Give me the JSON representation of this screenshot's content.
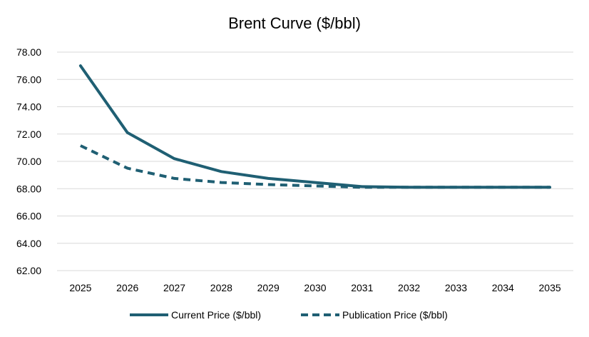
{
  "chart_data": {
    "type": "line",
    "title": "Brent Curve ($/bbl)",
    "xlabel": "",
    "ylabel": "",
    "x": [
      "2025",
      "2026",
      "2027",
      "2028",
      "2029",
      "2030",
      "2031",
      "2032",
      "2033",
      "2034",
      "2035"
    ],
    "ylim": [
      62,
      78
    ],
    "yticks": [
      "62.00",
      "64.00",
      "66.00",
      "68.00",
      "70.00",
      "72.00",
      "74.00",
      "76.00",
      "78.00"
    ],
    "grid": true,
    "legend_position": "bottom",
    "series": [
      {
        "name": "Current Price ($/bbl)",
        "style": "solid",
        "color": "#1f5f73",
        "values": [
          77.0,
          72.1,
          70.2,
          69.25,
          68.75,
          68.45,
          68.15,
          68.1,
          68.1,
          68.1,
          68.1
        ]
      },
      {
        "name": "Publication Price ($/bbl)",
        "style": "dashed",
        "color": "#1f5f73",
        "values": [
          71.15,
          69.5,
          68.75,
          68.45,
          68.3,
          68.2,
          68.1,
          68.1,
          68.1,
          68.1,
          68.1
        ]
      }
    ]
  }
}
